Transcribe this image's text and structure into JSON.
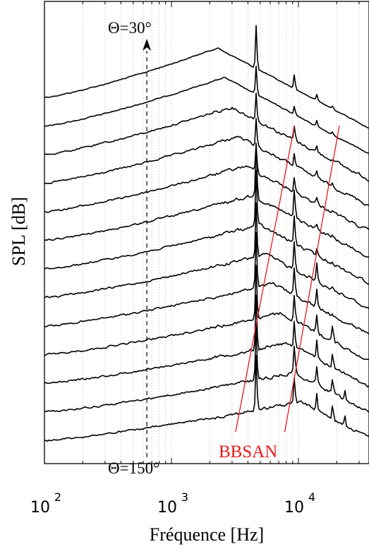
{
  "chart_data": {
    "type": "line",
    "title": "",
    "xlabel": "Fréquence [Hz]",
    "ylabel": "SPL [dB]",
    "x_scale": "log",
    "xlim": [
      100,
      35000
    ],
    "x_ticks": [
      {
        "value": 100,
        "base": "10",
        "exp": "2"
      },
      {
        "value": 1000,
        "base": "10",
        "exp": "3"
      },
      {
        "value": 10000,
        "base": "10",
        "exp": "4"
      }
    ],
    "y_ticks_shown": false,
    "grid": {
      "x_minor": true,
      "y": false
    },
    "series_count": 13,
    "series_note_angles": {
      "first": "Θ=30°",
      "last": "Θ=150°"
    },
    "tones_hz": [
      4650,
      9300,
      13950,
      18600,
      23250
    ],
    "annotations": {
      "top_angle": "Θ=30°",
      "bottom_angle": "Θ=150°",
      "bbsan": "BBSAN",
      "dashed_marker_x": 640,
      "bbsan_lines": [
        {
          "x1": 3200,
          "x2": 9300
        },
        {
          "x1": 7800,
          "x2": 21000
        }
      ]
    },
    "colors": {
      "curves": "#000000",
      "bbsan": "#e8191b",
      "grid": "#bdbdbd"
    }
  }
}
